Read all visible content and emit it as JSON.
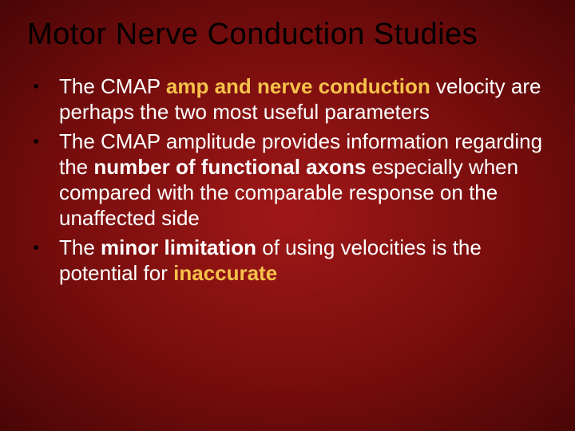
{
  "slide": {
    "title": "Motor Nerve Conduction Studies",
    "title_color": "#000000",
    "title_fontsize": 38,
    "body_color": "#ffffff",
    "body_fontsize": 26,
    "accent_color": "#f6c24a",
    "bullet_color": "#000000",
    "background": {
      "type": "radial-gradient",
      "inner": "#a01818",
      "mid": "#780d0d",
      "outer": "#4a0606"
    },
    "bullets": [
      {
        "runs": [
          {
            "t": "The CMAP ",
            "style": "normal"
          },
          {
            "t": "amp and nerve conduction",
            "style": "accent"
          },
          {
            "t": " velocity are perhaps the two most useful parameters",
            "style": "normal"
          }
        ]
      },
      {
        "runs": [
          {
            "t": "The CMAP amplitude provides information regarding the ",
            "style": "normal"
          },
          {
            "t": "number of functional axons",
            "style": "bold"
          },
          {
            "t": " especially when compared with the comparable response on the unaffected side",
            "style": "normal"
          }
        ]
      },
      {
        "runs": [
          {
            "t": "The ",
            "style": "normal"
          },
          {
            "t": "minor limitation",
            "style": "bold"
          },
          {
            "t": " of using velocities is the potential for ",
            "style": "normal"
          },
          {
            "t": "inaccurate",
            "style": "accent"
          }
        ]
      }
    ]
  }
}
